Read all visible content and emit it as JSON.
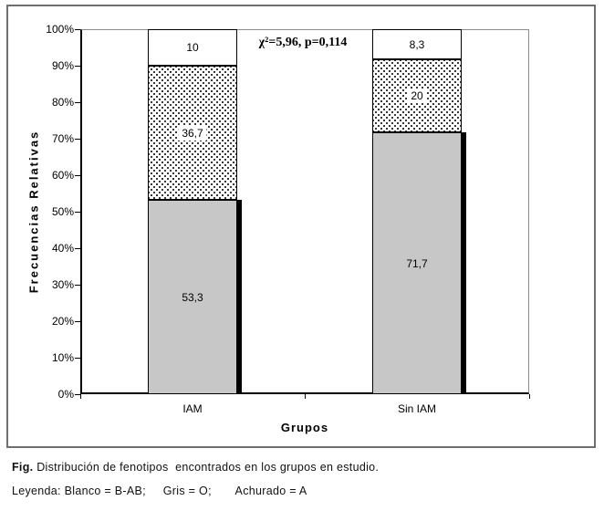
{
  "figure": {
    "caption_fig_label": "Fig.",
    "caption_text": " Distribución de fenotipos  encontrados en los grupos en estudio.",
    "legend_line": "Leyenda: Blanco = B-AB;     Gris = O;       Achurado = A"
  },
  "chart_data": {
    "type": "bar",
    "stacked": true,
    "title": "",
    "xlabel": "Grupos",
    "ylabel": "Frecuencias Relativas",
    "ylim": [
      0,
      100
    ],
    "yticks": [
      "100%",
      "90%",
      "80%",
      "70%",
      "60%",
      "50%",
      "40%",
      "30%",
      "20%",
      "10%",
      "0%"
    ],
    "grid": false,
    "legend_position": "text-below-figure",
    "annotation": "χ²=5,96, p=0,114",
    "categories": [
      "IAM",
      "Sin IAM"
    ],
    "series": [
      {
        "name": "O",
        "legend_text": "Gris = O",
        "style": "gray",
        "color": "#c7c7c7",
        "values": [
          53.3,
          71.7
        ],
        "labels": [
          "53,3",
          "71,7"
        ],
        "shadow": true
      },
      {
        "name": "A",
        "legend_text": "Achurado = A",
        "style": "dots",
        "color": "#ffffff",
        "values": [
          36.7,
          20
        ],
        "labels": [
          "36,7",
          "20"
        ],
        "shadow": false
      },
      {
        "name": "B-AB",
        "legend_text": "Blanco = B-AB",
        "style": "white",
        "color": "#ffffff",
        "values": [
          10,
          8.3
        ],
        "labels": [
          "10",
          "8,3"
        ],
        "shadow": false
      }
    ],
    "colors": {
      "frame_border": "#6f6f6f",
      "axis": "#000000",
      "plot_border": "#8c8c8c",
      "bar_gray": "#c7c7c7",
      "shadow": "#000000"
    }
  }
}
